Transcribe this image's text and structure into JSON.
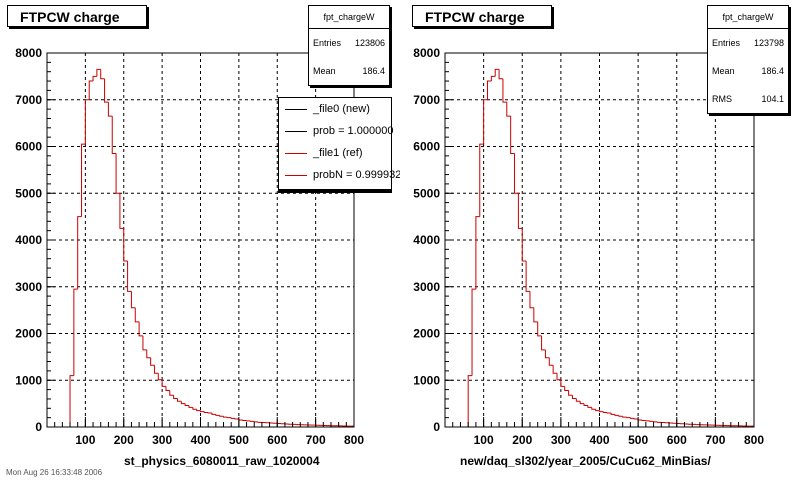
{
  "colors": {
    "ref": "#cc0000",
    "new": "#000000"
  },
  "footer": {
    "text": "Mon Aug 26 16:33:48 2006"
  },
  "pads": [
    {
      "title": "FTPCW charge",
      "xlabel": "st_physics_6080011_raw_1020004",
      "stats": {
        "name": "fpt_chargeW",
        "rows": [
          {
            "label": "Entries",
            "value": "123806"
          },
          {
            "label": "Mean",
            "value": "186.4"
          }
        ]
      },
      "legend": [
        {
          "label": "_file0 (new)",
          "color": "#000000"
        },
        {
          "label": "prob = 1.000000",
          "color": "#000000"
        },
        {
          "label": "_file1 (ref)",
          "color": "#cc0000"
        },
        {
          "label": "probN = 0.999932",
          "color": "#cc0000"
        }
      ]
    },
    {
      "title": "FTPCW charge",
      "xlabel": "new/daq_sl302/year_2005/CuCu62_MinBias/",
      "stats": {
        "name": "fpt_chargeW",
        "rows": [
          {
            "label": "Entries",
            "value": "123798"
          },
          {
            "label": "Mean",
            "value": "186.4"
          },
          {
            "label": "RMS",
            "value": "104.1"
          }
        ]
      },
      "legend": []
    }
  ],
  "chart_data": [
    {
      "type": "bar",
      "title": "FTPCW charge",
      "xlabel": "st_physics_6080011_raw_1020004",
      "ylabel": "",
      "xlim": [
        0,
        800
      ],
      "ylim": [
        0,
        8000
      ],
      "xticks": [
        100,
        200,
        300,
        400,
        500,
        600,
        700,
        800
      ],
      "yticks": [
        0,
        1000,
        2000,
        3000,
        4000,
        5000,
        6000,
        7000,
        8000
      ],
      "grid": true,
      "legend_position": "top-right",
      "bin_width": 10,
      "bin_start": 0,
      "series": [
        {
          "name": "_file1 (ref)",
          "values": [
            0,
            0,
            0,
            0,
            0,
            0,
            1100,
            2950,
            4500,
            6050,
            7000,
            7400,
            7500,
            7650,
            7450,
            6950,
            6650,
            5850,
            5000,
            4250,
            3550,
            2900,
            2550,
            2250,
            1950,
            1650,
            1480,
            1320,
            1150,
            1010,
            870,
            780,
            680,
            610,
            550,
            500,
            460,
            420,
            380,
            350,
            330,
            310,
            300,
            270,
            250,
            230,
            210,
            200,
            185,
            170,
            150,
            140,
            130,
            120,
            110,
            100,
            95,
            90,
            85,
            80,
            75,
            70,
            65,
            60,
            55,
            50,
            48,
            45,
            42,
            40,
            38,
            35,
            33,
            30,
            28,
            26,
            24,
            22,
            20,
            18
          ]
        }
      ]
    },
    {
      "type": "bar",
      "title": "FTPCW charge",
      "xlabel": "new/daq_sl302/year_2005/CuCu62_MinBias/",
      "ylabel": "",
      "xlim": [
        0,
        800
      ],
      "ylim": [
        0,
        8000
      ],
      "xticks": [
        100,
        200,
        300,
        400,
        500,
        600,
        700,
        800
      ],
      "yticks": [
        0,
        1000,
        2000,
        3000,
        4000,
        5000,
        6000,
        7000,
        8000
      ],
      "grid": true,
      "bin_width": 10,
      "bin_start": 0,
      "series": [
        {
          "values": [
            0,
            0,
            0,
            0,
            0,
            0,
            1100,
            2950,
            4500,
            6050,
            7000,
            7400,
            7500,
            7650,
            7450,
            6950,
            6650,
            5850,
            5000,
            4250,
            3550,
            2900,
            2550,
            2250,
            1950,
            1650,
            1480,
            1320,
            1150,
            1010,
            870,
            780,
            680,
            610,
            550,
            500,
            460,
            420,
            380,
            350,
            330,
            310,
            300,
            270,
            250,
            230,
            210,
            200,
            185,
            170,
            150,
            140,
            130,
            120,
            110,
            100,
            95,
            90,
            85,
            80,
            75,
            70,
            65,
            60,
            55,
            50,
            48,
            45,
            42,
            40,
            38,
            35,
            33,
            30,
            28,
            26,
            24,
            22,
            20,
            18
          ]
        }
      ]
    }
  ]
}
